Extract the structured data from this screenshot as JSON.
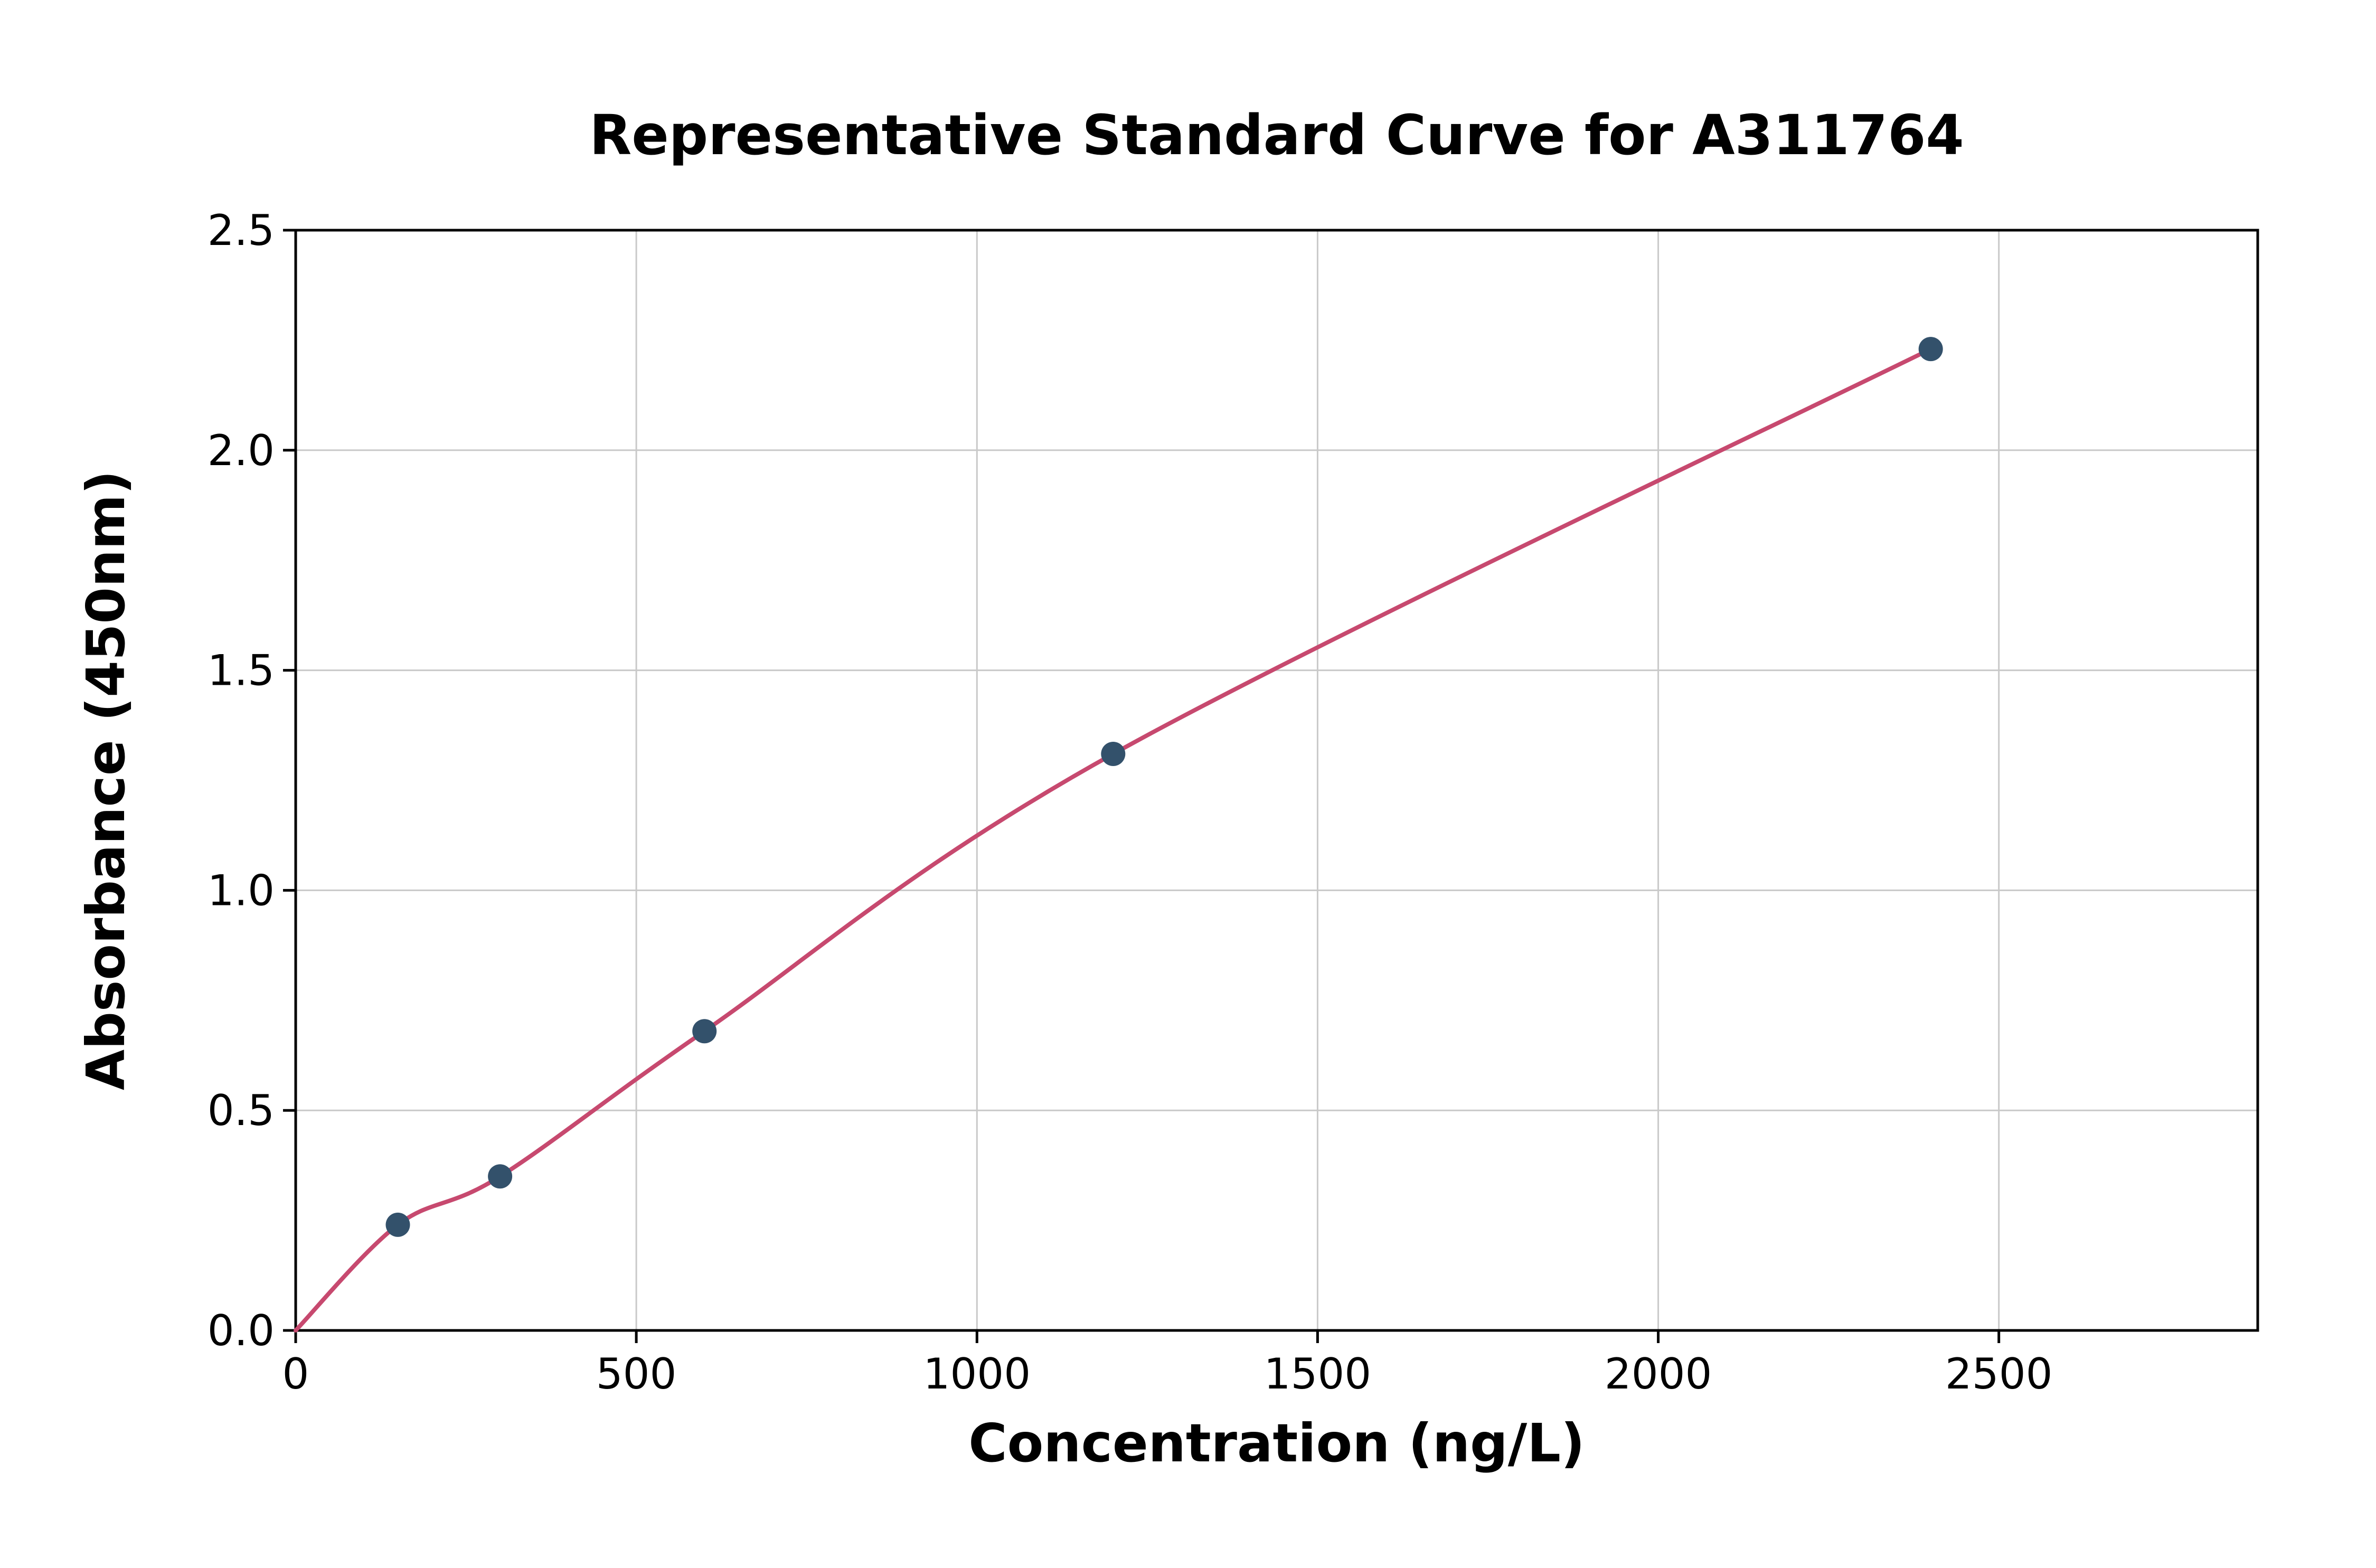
{
  "chart_data": {
    "type": "scatter",
    "title": "Representative Standard Curve for A311764",
    "xlabel": "Concentration (ng/L)",
    "ylabel": "Absorbance (450nm)",
    "xlim": [
      0,
      2880
    ],
    "ylim": [
      0,
      2.5
    ],
    "xticks": [
      0,
      500,
      1000,
      1500,
      2000,
      2500
    ],
    "xtick_labels": [
      "0",
      "500",
      "1000",
      "1500",
      "2000",
      "2500"
    ],
    "yticks": [
      0,
      0.5,
      1,
      1.5,
      2,
      2.5
    ],
    "ytick_labels": [
      "0.0",
      "0.5",
      "1.0",
      "1.5",
      "2.0",
      "2.5"
    ],
    "grid": true,
    "legend": "none",
    "series": [
      {
        "name": "fit-curve",
        "type": "line",
        "smooth": true,
        "x": [
          0,
          150,
          300,
          600,
          1200,
          2400
        ],
        "y": [
          0.0,
          0.24,
          0.35,
          0.68,
          1.31,
          2.23
        ]
      },
      {
        "name": "standard-points",
        "type": "scatter",
        "x": [
          150,
          300,
          600,
          1200,
          2400
        ],
        "y": [
          0.24,
          0.35,
          0.68,
          1.31,
          2.23
        ]
      }
    ],
    "colors": {
      "line": "#c7496f",
      "marker": "#33516b",
      "grid": "#c9c9c9",
      "axis": "#000000",
      "background": "#ffffff"
    }
  }
}
